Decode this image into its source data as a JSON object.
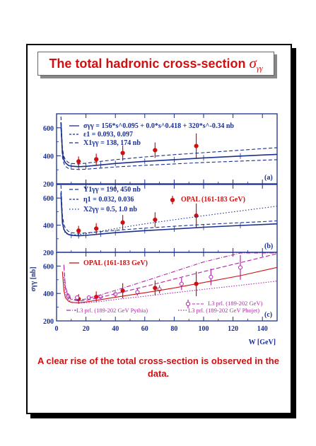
{
  "title": {
    "text": "The total hadronic cross-section",
    "symbol": "σ",
    "subscript": "γγ"
  },
  "caption": "A clear rise of the total cross-section is observed in the data.",
  "colors": {
    "red": "#d01010",
    "blue": "#1a2f8f",
    "magenta": "#b02aa8"
  },
  "chart_data": [
    {
      "type": "line",
      "panel_label": "(a)",
      "ylim": [
        200,
        700
      ],
      "yticks": [
        "200",
        "400",
        "600"
      ],
      "xlim": [
        0,
        150
      ],
      "legend": [
        "σγγ = 156*s^0.095 + 0.0*s^0.418 + 320*s^-0.34 nb",
        "ε1 = 0.093, 0.097",
        "X1γγ = 138, 174 nb"
      ],
      "series": [
        {
          "name": "OPAL (161-183 GeV)",
          "style": "points",
          "x": [
            15,
            27,
            45,
            67,
            95
          ],
          "y": [
            360,
            375,
            420,
            440,
            470
          ],
          "yerr": [
            35,
            40,
            55,
            55,
            90
          ]
        },
        {
          "style": "solid",
          "x": [
            3,
            4,
            5,
            6,
            8,
            10,
            15,
            20,
            30,
            40,
            60,
            80,
            100,
            125,
            150
          ],
          "y": [
            640,
            420,
            370,
            350,
            332,
            326,
            322,
            325,
            335,
            345,
            360,
            372,
            385,
            398,
            410
          ]
        },
        {
          "style": "dashed-upper",
          "x": [
            3,
            4,
            5,
            6,
            8,
            10,
            15,
            20,
            30,
            40,
            60,
            80,
            100,
            125,
            150
          ],
          "y": [
            680,
            450,
            395,
            372,
            352,
            345,
            342,
            347,
            360,
            372,
            392,
            408,
            422,
            440,
            458
          ]
        },
        {
          "style": "dashed-lower",
          "x": [
            3,
            4,
            5,
            6,
            8,
            10,
            15,
            20,
            30,
            40,
            60,
            80,
            100,
            125,
            150
          ],
          "y": [
            600,
            390,
            345,
            325,
            310,
            305,
            302,
            304,
            312,
            320,
            332,
            342,
            352,
            362,
            372
          ]
        }
      ]
    },
    {
      "type": "line",
      "panel_label": "(b)",
      "ylim": [
        200,
        700
      ],
      "yticks": [
        "200",
        "400",
        "600"
      ],
      "xlim": [
        0,
        150
      ],
      "legend": [
        "Y1γγ = 190, 450 nb",
        "η1 = 0.032, 0.036",
        "X2γγ = 0.5, 1.0 nb",
        "OPAL (161-183 GeV)"
      ],
      "series": [
        {
          "name": "OPAL (161-183 GeV)",
          "style": "points",
          "x": [
            15,
            27,
            45,
            67,
            95
          ],
          "y": [
            360,
            375,
            420,
            440,
            470
          ],
          "yerr": [
            35,
            40,
            55,
            55,
            90
          ]
        },
        {
          "style": "solid",
          "x": [
            3,
            4,
            5,
            6,
            8,
            10,
            15,
            20,
            30,
            40,
            60,
            80,
            100,
            125,
            150
          ],
          "y": [
            640,
            420,
            370,
            350,
            332,
            326,
            322,
            325,
            335,
            345,
            360,
            372,
            385,
            398,
            410
          ]
        },
        {
          "style": "dashed-upper",
          "x": [
            3,
            4,
            5,
            6,
            8,
            10,
            15,
            20,
            30,
            40,
            60,
            80,
            100,
            125,
            150
          ],
          "y": [
            720,
            470,
            405,
            378,
            355,
            345,
            340,
            343,
            352,
            362,
            378,
            392,
            405,
            418,
            432
          ]
        },
        {
          "style": "dotted",
          "x": [
            3,
            4,
            5,
            6,
            8,
            10,
            15,
            20,
            30,
            40,
            60,
            80,
            100,
            125,
            150
          ],
          "y": [
            600,
            410,
            360,
            342,
            330,
            328,
            330,
            338,
            356,
            375,
            410,
            440,
            470,
            505,
            540
          ]
        }
      ]
    },
    {
      "type": "line",
      "panel_label": "(c)",
      "ylim": [
        200,
        700
      ],
      "yticks": [
        "200",
        "400",
        "600"
      ],
      "xlim": [
        0,
        150
      ],
      "xticks": [
        "0",
        "20",
        "40",
        "60",
        "80",
        "100",
        "120",
        "140"
      ],
      "xlabel": "W [GeV]",
      "ylabel": "σγγ [nb]",
      "legend": [
        "OPAL (161-183 GeV)",
        "L3 prl. (189-202 GeV)",
        "L3 prl. (189-202 GeV Pythia)",
        "L3 prl. (189-202 GeV Phojet)"
      ],
      "series": [
        {
          "name": "OPAL (161-183 GeV)",
          "style": "points",
          "x": [
            15,
            27,
            45,
            67,
            95
          ],
          "y": [
            360,
            375,
            420,
            440,
            470
          ],
          "yerr": [
            35,
            40,
            55,
            55,
            90
          ]
        },
        {
          "name": "L3 prl. (189-202 GeV)",
          "style": "open-points",
          "x": [
            8,
            14,
            22,
            30,
            40,
            55,
            70,
            85,
            105,
            125
          ],
          "y": [
            380,
            370,
            370,
            375,
            395,
            410,
            430,
            470,
            520,
            590
          ],
          "yerr": [
            20,
            15,
            15,
            15,
            20,
            25,
            30,
            45,
            60,
            90
          ]
        },
        {
          "style": "solid",
          "x": [
            4,
            5,
            6,
            8,
            10,
            15,
            20,
            30,
            40,
            60,
            80,
            100,
            125,
            150
          ],
          "y": [
            560,
            420,
            370,
            345,
            335,
            332,
            338,
            355,
            372,
            405,
            440,
            480,
            530,
            590
          ]
        },
        {
          "style": "dashed",
          "x": [
            5,
            6,
            8,
            10,
            15,
            20,
            30,
            40,
            60,
            80,
            100,
            125,
            150
          ],
          "y": [
            600,
            440,
            375,
            355,
            345,
            350,
            372,
            398,
            450,
            505,
            560,
            625,
            690
          ]
        },
        {
          "name": "L3 prl. (189-202 GeV Pythia)",
          "style": "dash-dot",
          "x": [
            5,
            6,
            8,
            10,
            15,
            20,
            30,
            40,
            60,
            80,
            100,
            125,
            150
          ],
          "y": [
            610,
            450,
            385,
            360,
            352,
            360,
            390,
            422,
            490,
            560,
            630,
            700,
            760
          ]
        },
        {
          "name": "L3 prl. (189-202 GeV Phojet)",
          "style": "dotted",
          "x": [
            5,
            6,
            8,
            10,
            15,
            20,
            30,
            40,
            60,
            80,
            100,
            125,
            150
          ],
          "y": [
            520,
            400,
            355,
            338,
            330,
            332,
            342,
            356,
            380,
            405,
            430,
            460,
            490
          ]
        }
      ]
    }
  ]
}
